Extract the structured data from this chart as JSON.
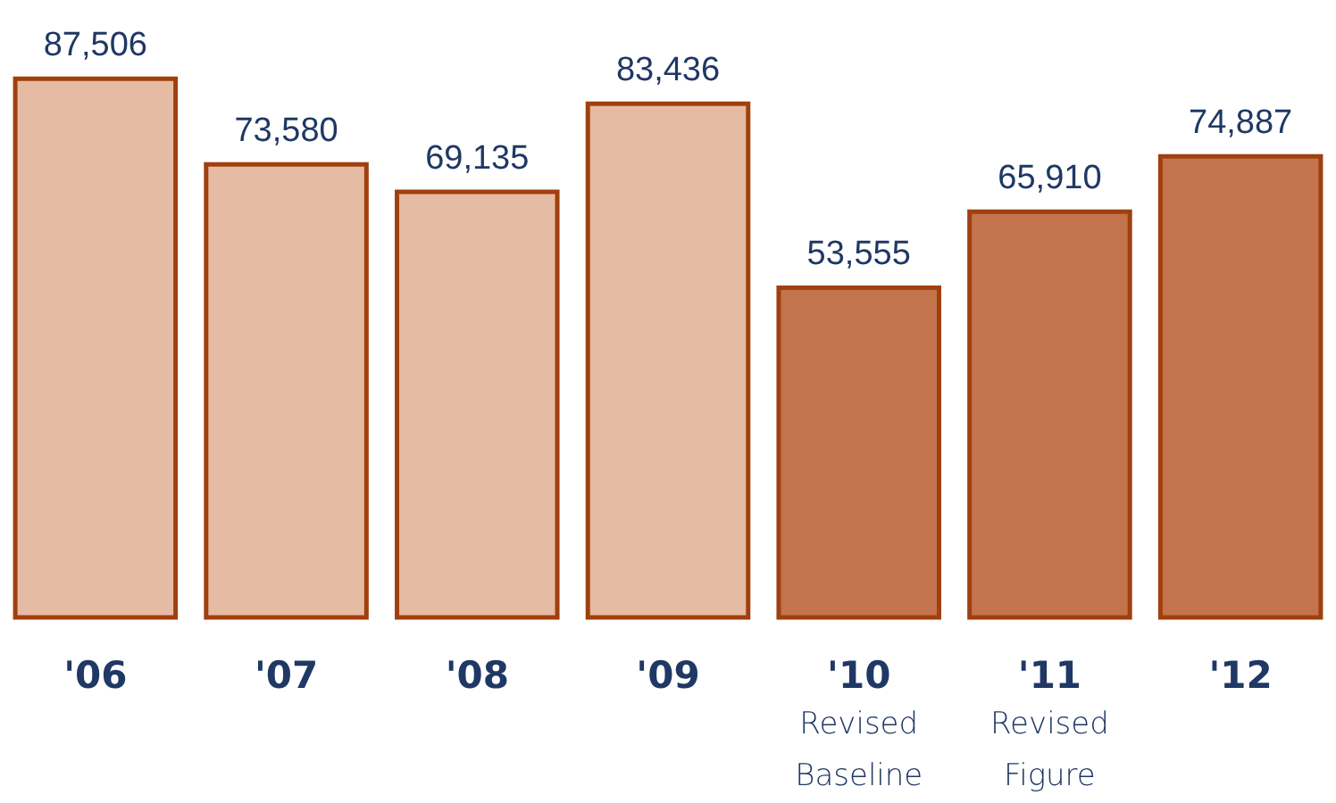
{
  "chart_data": {
    "type": "bar",
    "categories": [
      "'06",
      "'07",
      "'08",
      "'09",
      "'10",
      "'11",
      "'12"
    ],
    "values": [
      87506,
      73580,
      69135,
      83436,
      53555,
      65910,
      74887
    ],
    "colors": [
      "#e6bba3",
      "#e6bba3",
      "#e6bba3",
      "#e6bba3",
      "#c4744c",
      "#c4744c",
      "#c4744c"
    ],
    "value_labels": [
      "87,506",
      "73,580",
      "69,135",
      "83,436",
      "53,555",
      "65,910",
      "74,887"
    ],
    "annotations": [
      "Revised Baseline",
      "Revised Figure"
    ]
  }
}
